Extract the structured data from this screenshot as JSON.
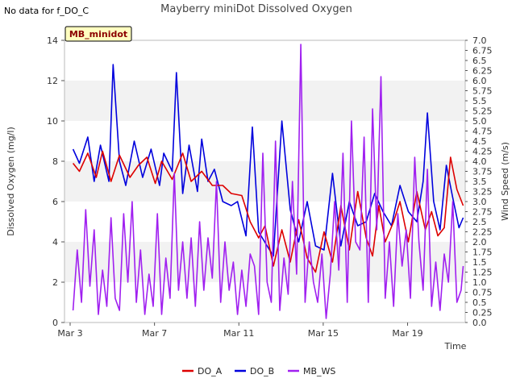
{
  "no_data_note": "No data for f_DO_C",
  "chart_data": {
    "type": "line",
    "title": "Mayberry miniDot Dissolved Oxygen",
    "badge": "MB_minidot",
    "xlabel": "Time",
    "ylabel_left": "Dissolved Oxygen (mg/l)",
    "ylabel_right": "Wind Speed (m/s)",
    "x_unit": "days since Mar 3",
    "xlim": [
      0,
      19
    ],
    "x_ticks": [
      {
        "value": 0,
        "label": "Mar 3"
      },
      {
        "value": 4,
        "label": "Mar 7"
      },
      {
        "value": 8,
        "label": "Mar 11"
      },
      {
        "value": 12,
        "label": "Mar 15"
      },
      {
        "value": 16,
        "label": "Mar 19"
      }
    ],
    "ylim_left": [
      0,
      14
    ],
    "y_ticks_left": [
      "0",
      "2",
      "4",
      "6",
      "8",
      "10",
      "12",
      "14"
    ],
    "ylim_right": [
      0,
      7
    ],
    "y_ticks_right": [
      "0.0",
      "0.25",
      "0.5",
      "0.75",
      "1.0",
      "1.25",
      "1.5",
      "1.75",
      "2.0",
      "2.25",
      "2.5",
      "2.75",
      "3.0",
      "3.25",
      "3.5",
      "3.75",
      "4.0",
      "4.25",
      "4.5",
      "4.75",
      "5.0",
      "5.25",
      "5.5",
      "5.75",
      "6.0",
      "6.25",
      "6.5",
      "6.75",
      "7.0"
    ],
    "grid": "horizontal bands",
    "legend_position": "bottom",
    "series": [
      {
        "name": "DO_A",
        "color": "#dd0000",
        "axis": "left",
        "x": [
          0.1,
          0.4,
          0.8,
          1.2,
          1.5,
          1.9,
          2.3,
          2.8,
          3.2,
          3.6,
          4.0,
          4.3,
          4.8,
          5.3,
          5.7,
          6.2,
          6.7,
          7.2,
          7.6,
          8.1,
          8.5,
          8.9,
          9.2,
          9.6,
          10.0,
          10.4,
          10.8,
          11.2,
          11.6,
          12.0,
          12.4,
          12.8,
          13.2,
          13.6,
          14.0,
          14.3,
          14.6,
          14.9,
          15.3,
          15.6,
          16.0,
          16.4,
          16.8,
          17.1,
          17.4,
          17.7,
          18.0,
          18.3,
          18.6
        ],
        "values": [
          7.9,
          7.5,
          8.4,
          7.2,
          8.5,
          7.0,
          8.3,
          7.2,
          7.8,
          8.2,
          6.9,
          8.0,
          7.1,
          8.4,
          7.0,
          7.5,
          6.8,
          6.8,
          6.4,
          6.3,
          5.0,
          4.2,
          4.8,
          2.8,
          4.6,
          3.0,
          5.1,
          3.2,
          2.5,
          4.5,
          3.0,
          5.8,
          3.6,
          6.5,
          4.2,
          3.3,
          5.8,
          4.0,
          5.0,
          6.0,
          4.0,
          6.5,
          4.6,
          5.5,
          4.3,
          4.7,
          8.2,
          6.6,
          5.8
        ]
      },
      {
        "name": "DO_B",
        "color": "#0000dd",
        "axis": "left",
        "x": [
          0.1,
          0.4,
          0.8,
          1.1,
          1.4,
          1.8,
          2.0,
          2.3,
          2.6,
          3.0,
          3.4,
          3.8,
          4.2,
          4.4,
          4.8,
          5.0,
          5.3,
          5.6,
          6.0,
          6.2,
          6.5,
          6.8,
          7.2,
          7.6,
          7.9,
          8.3,
          8.6,
          8.9,
          9.3,
          9.6,
          10.0,
          10.4,
          10.8,
          11.2,
          11.6,
          12.0,
          12.4,
          12.8,
          13.2,
          13.6,
          14.0,
          14.4,
          14.8,
          15.2,
          15.6,
          16.0,
          16.4,
          16.7,
          16.9,
          17.2,
          17.5,
          17.8,
          18.1,
          18.4,
          18.6
        ],
        "values": [
          8.6,
          7.9,
          9.2,
          7.0,
          8.8,
          7.0,
          12.8,
          8.0,
          6.8,
          9.0,
          7.2,
          8.6,
          6.8,
          8.4,
          7.5,
          12.4,
          6.4,
          8.8,
          6.5,
          9.1,
          7.0,
          7.6,
          6.0,
          5.8,
          6.0,
          4.3,
          9.7,
          4.5,
          3.8,
          3.3,
          10.0,
          5.6,
          4.0,
          6.0,
          3.8,
          3.6,
          7.4,
          3.8,
          6.0,
          4.8,
          5.0,
          6.4,
          5.5,
          4.8,
          6.8,
          5.5,
          5.0,
          7.0,
          10.4,
          6.0,
          4.6,
          7.8,
          6.2,
          4.7,
          5.2
        ]
      },
      {
        "name": "MB_WS",
        "color": "#a020f0",
        "axis": "right",
        "x": [
          0.1,
          0.3,
          0.5,
          0.7,
          0.9,
          1.1,
          1.3,
          1.5,
          1.7,
          1.9,
          2.1,
          2.3,
          2.5,
          2.7,
          2.9,
          3.1,
          3.3,
          3.5,
          3.7,
          3.9,
          4.1,
          4.3,
          4.5,
          4.7,
          4.9,
          5.1,
          5.3,
          5.5,
          5.7,
          5.9,
          6.1,
          6.3,
          6.5,
          6.7,
          6.9,
          7.1,
          7.3,
          7.5,
          7.7,
          7.9,
          8.1,
          8.3,
          8.5,
          8.7,
          8.9,
          9.1,
          9.3,
          9.5,
          9.7,
          9.9,
          10.1,
          10.3,
          10.5,
          10.7,
          10.9,
          11.1,
          11.3,
          11.5,
          11.7,
          11.9,
          12.1,
          12.3,
          12.5,
          12.7,
          12.9,
          13.1,
          13.3,
          13.5,
          13.7,
          13.9,
          14.1,
          14.3,
          14.5,
          14.7,
          14.9,
          15.1,
          15.3,
          15.5,
          15.7,
          15.9,
          16.1,
          16.3,
          16.5,
          16.7,
          16.9,
          17.1,
          17.3,
          17.5,
          17.7,
          17.9,
          18.1,
          18.3,
          18.5,
          18.6
        ],
        "values": [
          0.3,
          1.8,
          0.5,
          2.8,
          0.9,
          2.3,
          0.2,
          1.3,
          0.4,
          2.6,
          0.6,
          0.3,
          2.7,
          1.0,
          3.0,
          0.5,
          1.8,
          0.2,
          1.2,
          0.4,
          2.7,
          0.2,
          1.6,
          0.6,
          3.7,
          0.8,
          2.0,
          0.6,
          2.1,
          0.4,
          2.5,
          0.8,
          2.1,
          1.1,
          3.5,
          0.5,
          2.0,
          0.8,
          1.5,
          0.2,
          1.3,
          0.4,
          1.7,
          1.4,
          0.2,
          4.2,
          1.0,
          0.5,
          4.5,
          0.3,
          1.6,
          0.7,
          3.5,
          1.2,
          6.9,
          0.5,
          2.0,
          1.0,
          0.5,
          1.7,
          0.1,
          1.2,
          3.0,
          1.3,
          4.2,
          0.5,
          5.0,
          2.0,
          1.8,
          4.6,
          0.5,
          5.3,
          2.3,
          6.1,
          0.6,
          2.0,
          0.4,
          2.7,
          1.4,
          2.3,
          0.6,
          4.1,
          2.0,
          0.8,
          3.8,
          0.4,
          1.5,
          0.3,
          1.7,
          1.0,
          3.0,
          0.5,
          0.8,
          1.4
        ]
      }
    ]
  }
}
